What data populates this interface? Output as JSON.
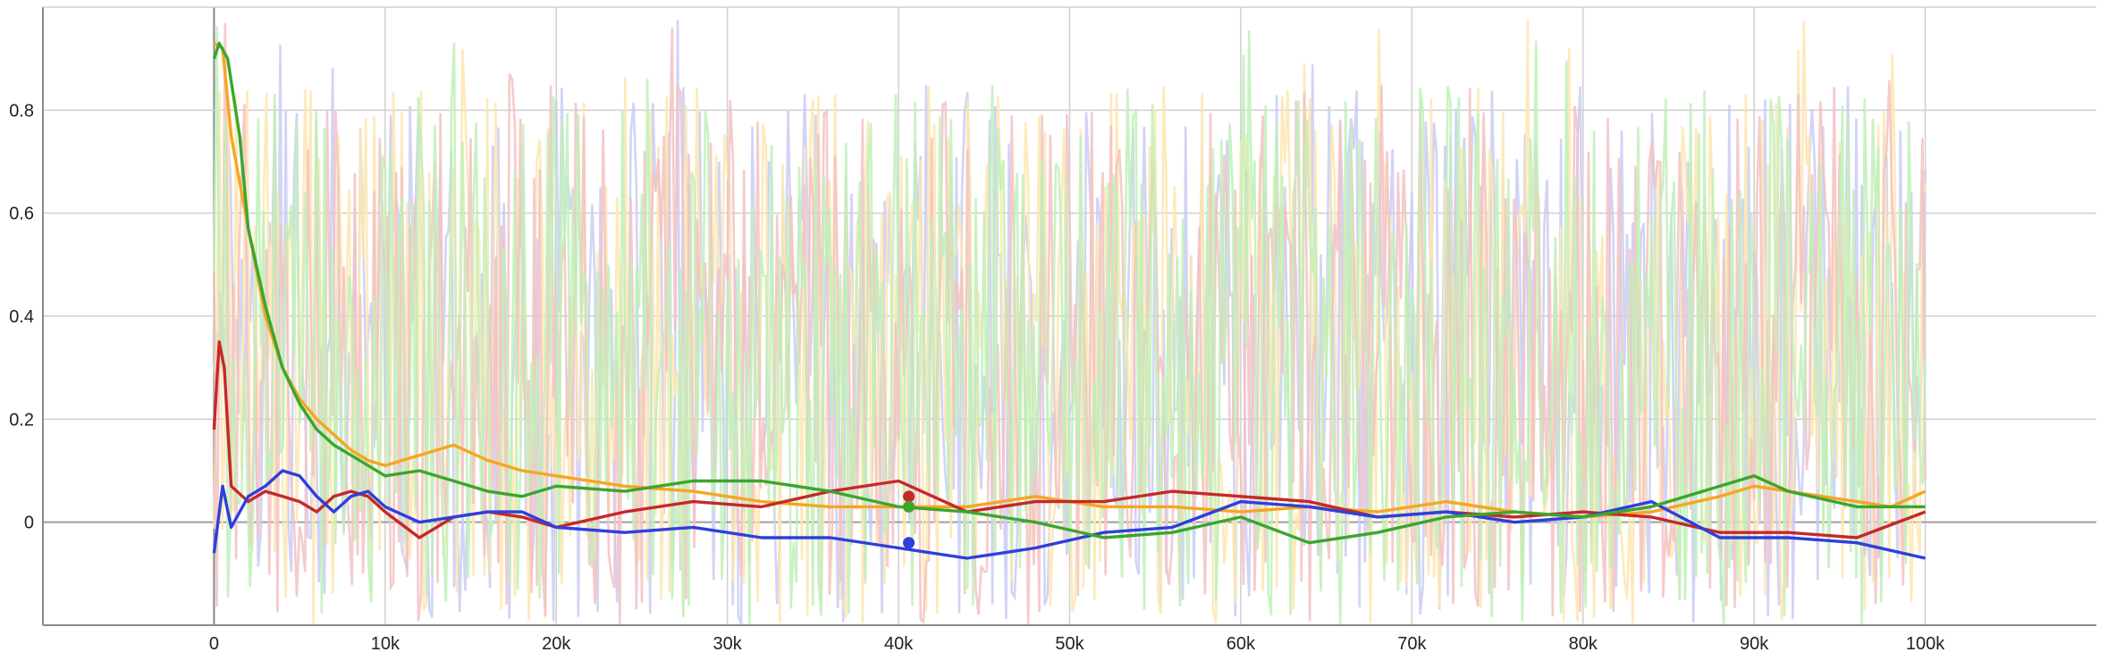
{
  "chart_data": {
    "type": "line",
    "title": "",
    "xlabel": "",
    "ylabel": "",
    "xlim": [
      -10000,
      110000
    ],
    "ylim": [
      -0.2,
      1.0
    ],
    "x_ticks": [
      {
        "value": 0,
        "label": "0"
      },
      {
        "value": 10000,
        "label": "10k"
      },
      {
        "value": 20000,
        "label": "20k"
      },
      {
        "value": 30000,
        "label": "30k"
      },
      {
        "value": 40000,
        "label": "40k"
      },
      {
        "value": 50000,
        "label": "50k"
      },
      {
        "value": 60000,
        "label": "60k"
      },
      {
        "value": 70000,
        "label": "70k"
      },
      {
        "value": 80000,
        "label": "80k"
      },
      {
        "value": 90000,
        "label": "90k"
      },
      {
        "value": 100000,
        "label": "100k"
      }
    ],
    "y_ticks": [
      {
        "value": 0,
        "label": "0"
      },
      {
        "value": 0.2,
        "label": "0.2"
      },
      {
        "value": 0.4,
        "label": "0.4"
      },
      {
        "value": 0.6,
        "label": "0.6"
      },
      {
        "value": 0.8,
        "label": "0.8"
      }
    ],
    "grid": true,
    "legend": "none",
    "raw_series_note_free": true,
    "series": [
      {
        "color": "#f5a623",
        "raw_color": "#fde6b0",
        "x": [
          0,
          500,
          1000,
          2000,
          3000,
          4000,
          5000,
          6000,
          7000,
          8000,
          9000,
          10000,
          12000,
          14000,
          16000,
          18000,
          20000,
          24000,
          28000,
          32000,
          36000,
          40000,
          44000,
          48000,
          52000,
          56000,
          60000,
          64000,
          68000,
          72000,
          76000,
          80000,
          84000,
          88000,
          90000,
          92000,
          96000,
          98000,
          100000
        ],
        "values": [
          0.93,
          0.92,
          0.75,
          0.57,
          0.4,
          0.3,
          0.24,
          0.2,
          0.17,
          0.14,
          0.12,
          0.11,
          0.13,
          0.15,
          0.12,
          0.1,
          0.09,
          0.07,
          0.06,
          0.04,
          0.03,
          0.03,
          0.03,
          0.05,
          0.03,
          0.03,
          0.02,
          0.03,
          0.02,
          0.04,
          0.02,
          0.01,
          0.02,
          0.05,
          0.07,
          0.06,
          0.04,
          0.03,
          0.06
        ]
      },
      {
        "color": "#c62828",
        "raw_color": "#f3c2c2",
        "x": [
          0,
          300,
          600,
          1000,
          2000,
          3000,
          4000,
          5000,
          6000,
          7000,
          8000,
          9000,
          10000,
          12000,
          14000,
          16000,
          18000,
          20000,
          24000,
          28000,
          32000,
          36000,
          40000,
          44000,
          48000,
          52000,
          56000,
          60000,
          64000,
          68000,
          72000,
          76000,
          80000,
          84000,
          88000,
          92000,
          96000,
          100000
        ],
        "values": [
          0.18,
          0.35,
          0.3,
          0.07,
          0.04,
          0.06,
          0.05,
          0.04,
          0.02,
          0.05,
          0.06,
          0.05,
          0.02,
          -0.03,
          0.01,
          0.02,
          0.01,
          -0.01,
          0.02,
          0.04,
          0.03,
          0.06,
          0.08,
          0.02,
          0.04,
          0.04,
          0.06,
          0.05,
          0.04,
          0.01,
          0.02,
          0.01,
          0.02,
          0.01,
          -0.02,
          -0.02,
          -0.03,
          0.02
        ]
      },
      {
        "color": "#2e3fdc",
        "raw_color": "#c9ccf5",
        "x": [
          0,
          500,
          1000,
          2000,
          3000,
          4000,
          5000,
          6000,
          7000,
          8000,
          9000,
          10000,
          12000,
          14000,
          16000,
          18000,
          20000,
          24000,
          28000,
          32000,
          36000,
          40000,
          42000,
          44000,
          46000,
          48000,
          52000,
          56000,
          60000,
          64000,
          68000,
          72000,
          76000,
          80000,
          84000,
          88000,
          92000,
          96000,
          100000
        ],
        "values": [
          -0.06,
          0.07,
          -0.01,
          0.05,
          0.07,
          0.1,
          0.09,
          0.05,
          0.02,
          0.05,
          0.06,
          0.03,
          0.0,
          0.01,
          0.02,
          0.02,
          -0.01,
          -0.02,
          -0.01,
          -0.03,
          -0.03,
          -0.05,
          -0.06,
          -0.07,
          -0.06,
          -0.05,
          -0.02,
          -0.01,
          0.04,
          0.03,
          0.01,
          0.02,
          0.0,
          0.01,
          0.04,
          -0.03,
          -0.03,
          -0.04,
          -0.07
        ]
      },
      {
        "color": "#3aa62e",
        "raw_color": "#bff0b8",
        "x": [
          0,
          300,
          800,
          1500,
          2000,
          3000,
          4000,
          5000,
          6000,
          7000,
          8000,
          9000,
          10000,
          12000,
          14000,
          16000,
          18000,
          20000,
          24000,
          28000,
          32000,
          36000,
          40000,
          44000,
          48000,
          52000,
          56000,
          60000,
          64000,
          68000,
          72000,
          76000,
          80000,
          84000,
          88000,
          90000,
          92000,
          96000,
          100000
        ],
        "values": [
          0.9,
          0.93,
          0.9,
          0.75,
          0.57,
          0.42,
          0.3,
          0.23,
          0.18,
          0.15,
          0.13,
          0.11,
          0.09,
          0.1,
          0.08,
          0.06,
          0.05,
          0.07,
          0.06,
          0.08,
          0.08,
          0.06,
          0.03,
          0.02,
          0.0,
          -0.03,
          -0.02,
          0.01,
          -0.04,
          -0.02,
          0.01,
          0.02,
          0.01,
          0.03,
          0.07,
          0.09,
          0.06,
          0.03,
          0.03
        ]
      }
    ],
    "hover_markers": [
      {
        "series_index": 1,
        "x": 40600,
        "y": 0.05
      },
      {
        "series_index": 3,
        "x": 40600,
        "y": 0.03
      },
      {
        "series_index": 2,
        "x": 40600,
        "y": -0.04
      }
    ]
  }
}
